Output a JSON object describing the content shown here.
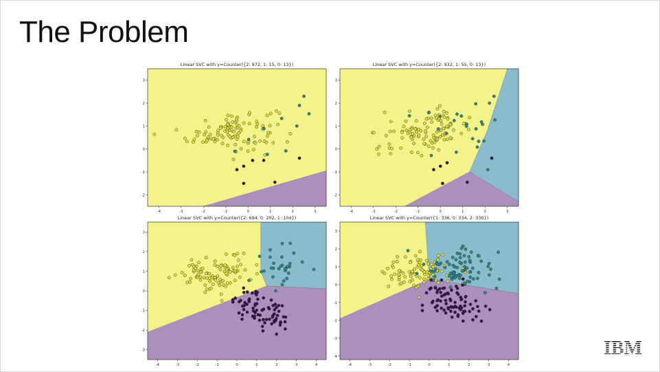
{
  "slide": {
    "title": "The Problem",
    "logo_text": "IBM"
  },
  "colors": {
    "yellow": "#f3f38a",
    "purple": "#ad8fbd",
    "teal": "#8bbccb",
    "point_yellow": "#e7e03a",
    "point_teal": "#2c8a8b",
    "point_purple": "#3b1148"
  },
  "chart_data": [
    {
      "type": "scatter",
      "title": "Linear SVC with y=Counter({2: 972, 1: 15, 0: 13})",
      "xlim": [
        -4.5,
        3.5
      ],
      "ylim": [
        -2.5,
        3.5
      ],
      "xticks": [
        -4,
        -3,
        -2,
        -1,
        0,
        1,
        2,
        3
      ],
      "yticks": [
        -2,
        -1,
        0,
        1,
        2,
        3
      ],
      "regions": [
        {
          "class": 0,
          "color": "purple",
          "polygon": [
            [
              -2,
              -2.5
            ],
            [
              3.5,
              -0.95
            ],
            [
              3.5,
              -2.5
            ]
          ]
        }
      ],
      "clusters": [
        {
          "class": 2,
          "n": 110,
          "mean": [
            -0.7,
            0.8
          ],
          "sd": [
            1.0,
            0.45
          ],
          "corr": 0.2
        },
        {
          "class": 1,
          "n": 8,
          "mean": [
            1.0,
            0.6
          ],
          "sd": [
            1.0,
            0.7
          ],
          "corr": 0.3
        }
      ],
      "points": [
        {
          "class": 0,
          "x": -0.5,
          "y": -0.9
        },
        {
          "class": 0,
          "x": -0.2,
          "y": -0.75
        },
        {
          "class": 0,
          "x": 0.2,
          "y": -0.5
        },
        {
          "class": 0,
          "x": 0.7,
          "y": -0.5
        },
        {
          "class": 0,
          "x": -0.2,
          "y": -1.5
        },
        {
          "class": 0,
          "x": 1.2,
          "y": -1.45
        },
        {
          "class": 0,
          "x": 2.3,
          "y": -0.4
        },
        {
          "class": 1,
          "x": 2.5,
          "y": 2.3
        },
        {
          "class": 1,
          "x": 2.3,
          "y": 1.9
        }
      ]
    },
    {
      "type": "scatter",
      "title": "Linear SVC with y=Counter({2: 932, 1: 55, 0: 13})",
      "xlim": [
        -4.5,
        3.5
      ],
      "ylim": [
        -2.5,
        3.5
      ],
      "xticks": [
        -4,
        -3,
        -2,
        -1,
        0,
        1,
        2,
        3
      ],
      "yticks": [
        -2,
        -1,
        0,
        1,
        2,
        3
      ],
      "regions": [
        {
          "class": 1,
          "color": "teal",
          "polygon": [
            [
              1.3,
              -1.0
            ],
            [
              2.1,
              0.8
            ],
            [
              3.0,
              3.5
            ],
            [
              3.5,
              3.5
            ],
            [
              3.5,
              -2.3
            ]
          ]
        },
        {
          "class": 0,
          "color": "purple",
          "polygon": [
            [
              -1.6,
              -2.5
            ],
            [
              1.3,
              -1.0
            ],
            [
              3.5,
              -2.3
            ],
            [
              3.5,
              -2.5
            ]
          ]
        }
      ],
      "clusters": [
        {
          "class": 2,
          "n": 110,
          "mean": [
            -0.6,
            0.8
          ],
          "sd": [
            1.0,
            0.45
          ],
          "corr": 0.2
        },
        {
          "class": 1,
          "n": 22,
          "mean": [
            1.0,
            0.9
          ],
          "sd": [
            0.9,
            0.6
          ],
          "corr": 0.3
        }
      ],
      "points": [
        {
          "class": 0,
          "x": -0.3,
          "y": -0.9
        },
        {
          "class": 0,
          "x": 0.0,
          "y": -0.75
        },
        {
          "class": 0,
          "x": 0.3,
          "y": -0.6
        },
        {
          "class": 0,
          "x": 0.1,
          "y": -1.5
        },
        {
          "class": 0,
          "x": 1.2,
          "y": -1.45
        },
        {
          "class": 0,
          "x": 2.3,
          "y": -0.4
        },
        {
          "class": 1,
          "x": 2.4,
          "y": 2.3
        },
        {
          "class": 1,
          "x": 2.2,
          "y": 2.0
        }
      ]
    },
    {
      "type": "scatter",
      "title": "Linear SVC with y=Counter({2: 694, 0: 202, 1: 104})",
      "xlim": [
        -4.5,
        4.5
      ],
      "ylim": [
        -3.5,
        3.5
      ],
      "xticks": [
        -4,
        -3,
        -2,
        -1,
        0,
        1,
        2,
        3,
        4
      ],
      "yticks": [
        -3,
        -2,
        -1,
        0,
        1,
        2,
        3
      ],
      "regions": [
        {
          "class": 1,
          "color": "teal",
          "polygon": [
            [
              1.2,
              3.5
            ],
            [
              4.5,
              3.5
            ],
            [
              4.5,
              0.1
            ],
            [
              1.5,
              0.25
            ],
            [
              1.2,
              1.0
            ]
          ]
        },
        {
          "class": 0,
          "color": "purple",
          "polygon": [
            [
              -4.5,
              -2.1
            ],
            [
              1.5,
              0.25
            ],
            [
              4.5,
              0.1
            ],
            [
              4.5,
              -3.5
            ],
            [
              -4.5,
              -3.5
            ]
          ]
        }
      ],
      "clusters": [
        {
          "class": 2,
          "n": 100,
          "mean": [
            -1.0,
            0.9
          ],
          "sd": [
            0.9,
            0.45
          ],
          "corr": 0.2
        },
        {
          "class": 1,
          "n": 30,
          "mean": [
            2.1,
            1.2
          ],
          "sd": [
            0.7,
            0.6
          ],
          "corr": 0.3
        },
        {
          "class": 0,
          "n": 75,
          "mean": [
            1.3,
            -1.0
          ],
          "sd": [
            0.8,
            0.55
          ],
          "corr": -0.5
        }
      ],
      "points": []
    },
    {
      "type": "scatter",
      "title": "Linear SVC with y=Counter({1: 336, 0: 334, 2: 330})",
      "xlim": [
        -4.5,
        4.5
      ],
      "ylim": [
        -4.2,
        3.5
      ],
      "xticks": [
        -4,
        -3,
        -2,
        -1,
        0,
        1,
        2,
        3,
        4
      ],
      "yticks": [
        -4,
        -3,
        -2,
        -1,
        0,
        1,
        2,
        3
      ],
      "regions": [
        {
          "class": 1,
          "color": "teal",
          "polygon": [
            [
              -0.2,
              3.5
            ],
            [
              4.5,
              3.5
            ],
            [
              4.5,
              -0.5
            ],
            [
              0.0,
              0.3
            ]
          ]
        },
        {
          "class": 0,
          "color": "purple",
          "polygon": [
            [
              -4.5,
              -1.9
            ],
            [
              0.0,
              0.3
            ],
            [
              4.5,
              -0.5
            ],
            [
              4.5,
              -4.2
            ],
            [
              -4.5,
              -4.2
            ]
          ]
        }
      ],
      "clusters": [
        {
          "class": 2,
          "n": 90,
          "mean": [
            -0.4,
            0.7
          ],
          "sd": [
            0.9,
            0.55
          ],
          "corr": 0.1
        },
        {
          "class": 1,
          "n": 80,
          "mean": [
            1.5,
            0.9
          ],
          "sd": [
            0.9,
            0.65
          ],
          "corr": 0.2
        },
        {
          "class": 0,
          "n": 80,
          "mean": [
            1.2,
            -0.9
          ],
          "sd": [
            0.9,
            0.6
          ],
          "corr": -0.5
        }
      ],
      "points": []
    }
  ]
}
